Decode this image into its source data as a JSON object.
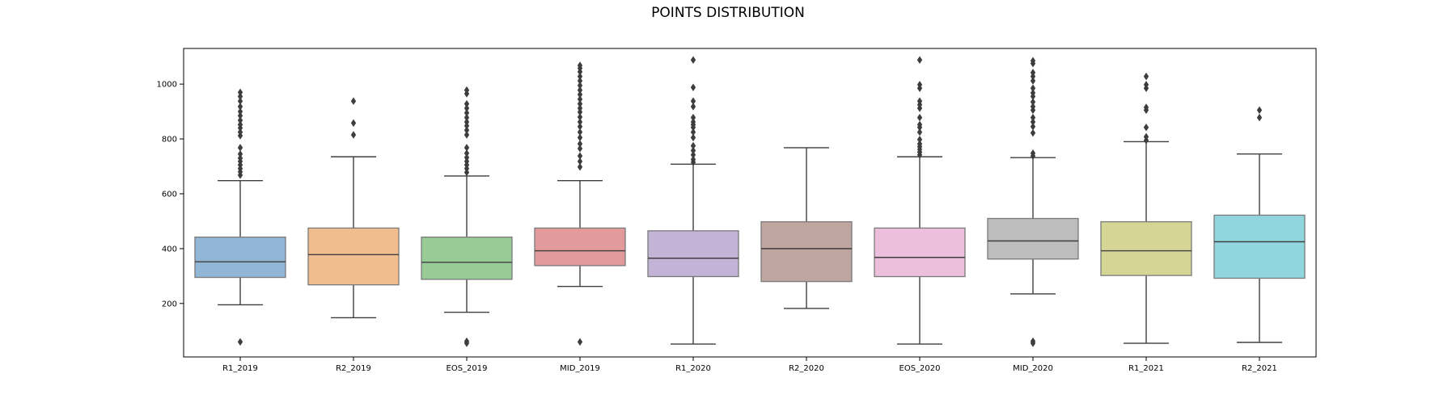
{
  "chart_data": {
    "type": "boxplot",
    "title": "POINTS DISTRIBUTION",
    "xlabel": "",
    "ylabel": "",
    "ylim": [
      5,
      1130
    ],
    "yticks": [
      200,
      400,
      600,
      800,
      1000
    ],
    "grid": false,
    "categories": [
      "R1_2019",
      "R2_2019",
      "EOS_2019",
      "MID_2019",
      "R1_2020",
      "R2_2020",
      "EOS_2020",
      "MID_2020",
      "R1_2021",
      "R2_2021"
    ],
    "colors": [
      "#92b6d5",
      "#f1bd8f",
      "#98cb96",
      "#e29a9a",
      "#c3b3d7",
      "#bfa6a0",
      "#ecbfdc",
      "#bdbdbd",
      "#d5d595",
      "#91d6df"
    ],
    "boxes": [
      {
        "whisker_low": 195,
        "q1": 295,
        "median": 352,
        "q3": 442,
        "whisker_high": 648,
        "outliers": [
          60,
          668,
          680,
          692,
          705,
          718,
          730,
          745,
          768,
          812,
          825,
          840,
          852,
          868,
          885,
          900,
          918,
          938,
          955,
          970
        ]
      },
      {
        "whisker_low": 148,
        "q1": 268,
        "median": 378,
        "q3": 475,
        "whisker_high": 735,
        "outliers": [
          815,
          858,
          938
        ]
      },
      {
        "whisker_low": 168,
        "q1": 288,
        "median": 350,
        "q3": 442,
        "whisker_high": 665,
        "outliers": [
          55,
          62,
          678,
          692,
          705,
          718,
          732,
          748,
          768,
          815,
          832,
          848,
          862,
          878,
          895,
          912,
          928,
          965,
          978
        ]
      },
      {
        "whisker_low": 262,
        "q1": 338,
        "median": 392,
        "q3": 475,
        "whisker_high": 648,
        "outliers": [
          60,
          698,
          718,
          738,
          765,
          782,
          805,
          825,
          845,
          862,
          880,
          898,
          912,
          928,
          945,
          962,
          978,
          995,
          1012,
          1028,
          1045,
          1058,
          1068
        ]
      },
      {
        "whisker_low": 52,
        "q1": 298,
        "median": 365,
        "q3": 465,
        "whisker_high": 708,
        "outliers": [
          715,
          725,
          742,
          758,
          775,
          805,
          825,
          842,
          852,
          862,
          878,
          918,
          938,
          988,
          1088
        ]
      },
      {
        "whisker_low": 182,
        "q1": 280,
        "median": 400,
        "q3": 498,
        "whisker_high": 768,
        "outliers": []
      },
      {
        "whisker_low": 52,
        "q1": 298,
        "median": 368,
        "q3": 475,
        "whisker_high": 735,
        "outliers": [
          742,
          752,
          762,
          772,
          782,
          798,
          825,
          842,
          852,
          878,
          912,
          925,
          938,
          985,
          998,
          1088
        ]
      },
      {
        "whisker_low": 235,
        "q1": 362,
        "median": 428,
        "q3": 510,
        "whisker_high": 732,
        "outliers": [
          55,
          62,
          738,
          748,
          822,
          845,
          862,
          878,
          905,
          918,
          935,
          955,
          968,
          985,
          1012,
          1028,
          1042,
          1075,
          1085
        ]
      },
      {
        "whisker_low": 55,
        "q1": 302,
        "median": 392,
        "q3": 498,
        "whisker_high": 790,
        "outliers": [
          795,
          808,
          842,
          905,
          915,
          985,
          998,
          1028
        ]
      },
      {
        "whisker_low": 58,
        "q1": 292,
        "median": 425,
        "q3": 522,
        "whisker_high": 745,
        "outliers": [
          878,
          905
        ]
      }
    ]
  }
}
